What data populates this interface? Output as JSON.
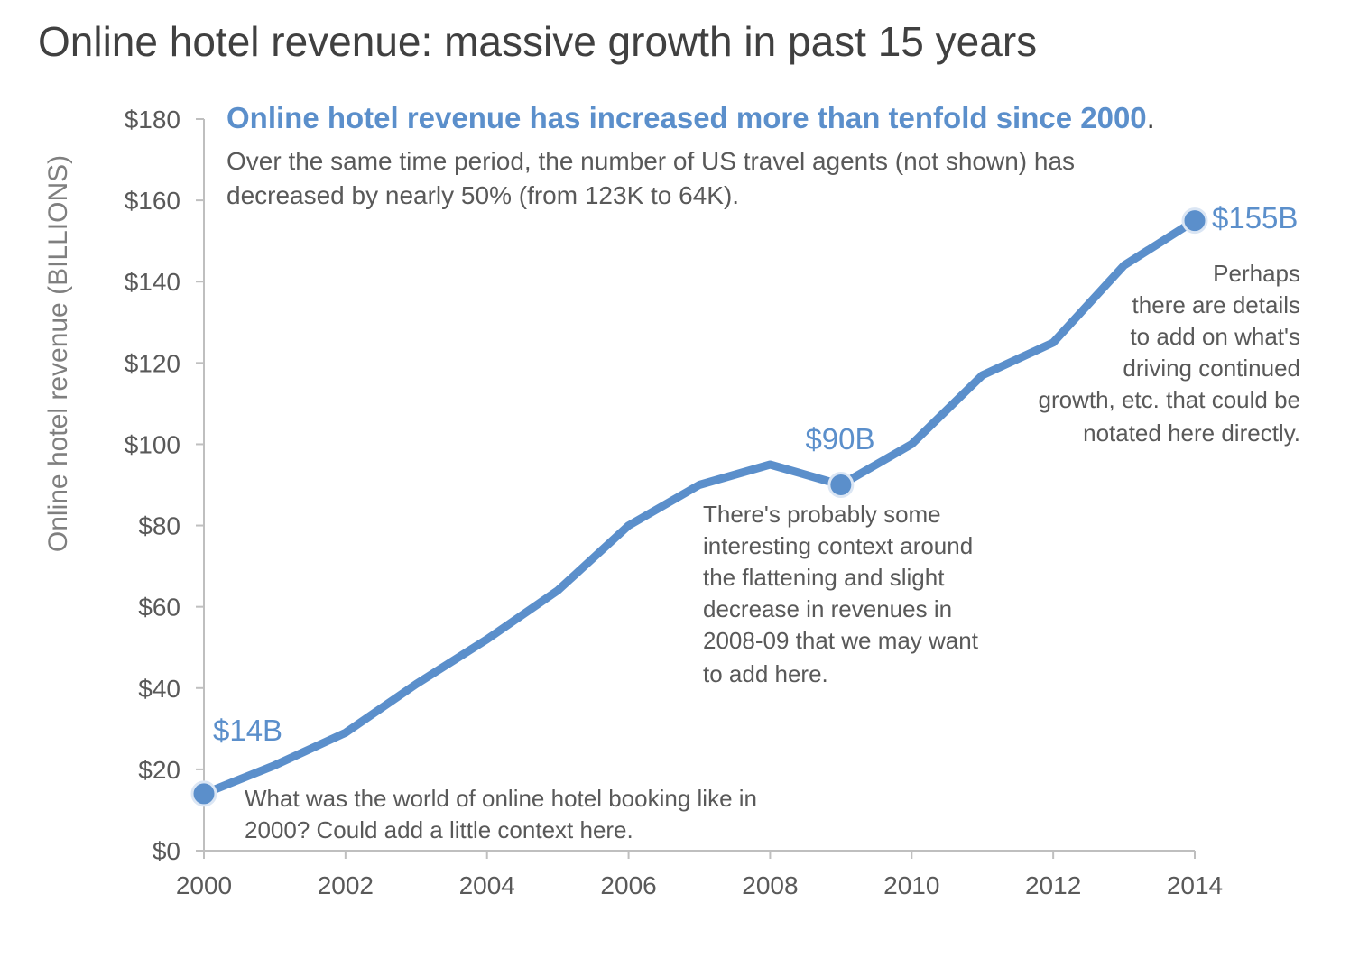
{
  "page": {
    "title": "Online hotel revenue: massive growth in past 15 years"
  },
  "colors": {
    "accent": "#5b8fcb",
    "title_text": "#404040",
    "body_text": "#595959",
    "axis_label": "#7f7f7f",
    "axis_line": "#bfbfbf"
  },
  "headline": {
    "text": "Online hotel revenue has increased more than tenfold since 2000",
    "end": "."
  },
  "subtext": [
    "Over the same time period, the number of US travel agents (not shown) has",
    "decreased by nearly 50% (from 123K to 64K)."
  ],
  "annotations": {
    "start_value": "$14B",
    "start_note": [
      "What was the world of online hotel booking like in",
      "2000? Could add a little context here."
    ],
    "dip_value": "$90B",
    "dip_note": [
      "There's probably some",
      "interesting context around",
      "the flattening and slight",
      "decrease in revenues in",
      "2008-09 that we may want",
      "to add here."
    ],
    "end_value": "$155B",
    "end_note": [
      "Perhaps",
      "there are details",
      "to add on what's",
      "driving continued",
      "growth, etc. that could be",
      "notated here directly."
    ]
  },
  "chart_data": {
    "type": "line",
    "title": "Online hotel revenue: massive growth in past 15 years",
    "ylabel": "Online hotel revenue (BILLIONS)",
    "xlabel": "",
    "xlim": [
      2000,
      2014
    ],
    "ylim": [
      0,
      180
    ],
    "x_ticks": [
      "2000",
      "2002",
      "2004",
      "2006",
      "2008",
      "2010",
      "2012",
      "2014"
    ],
    "y_ticks": [
      "$0",
      "$20",
      "$40",
      "$60",
      "$80",
      "$100",
      "$120",
      "$140",
      "$160",
      "$180"
    ],
    "grid": false,
    "legend": "none",
    "series": [
      {
        "x": [
          2000,
          2001,
          2002,
          2003,
          2004,
          2005,
          2006,
          2007,
          2008,
          2009,
          2010,
          2011,
          2012,
          2013,
          2014
        ],
        "values": [
          14,
          21,
          29,
          41,
          52,
          64,
          80,
          90,
          95,
          90,
          100,
          117,
          125,
          144,
          155
        ]
      }
    ],
    "highlighted_points": [
      2000,
      2009,
      2014
    ]
  }
}
